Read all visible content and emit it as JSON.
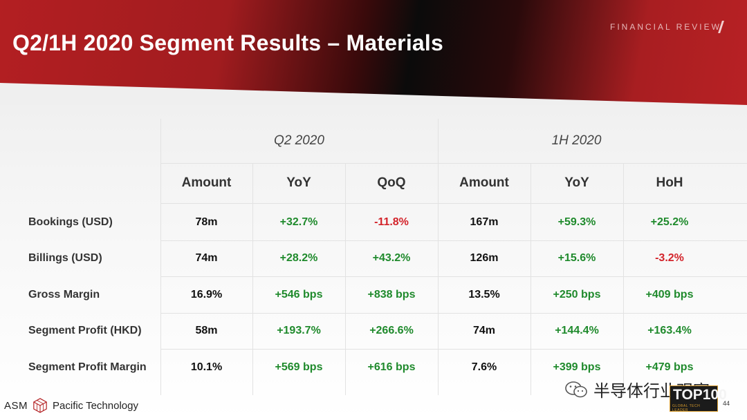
{
  "header": {
    "title": "Q2/1H 2020 Segment Results – Materials",
    "section_label": "FINANCIAL REVIEW"
  },
  "table": {
    "group_headers": [
      "Q2 2020",
      "1H 2020"
    ],
    "column_headers": [
      "Amount",
      "YoY",
      "QoQ",
      "Amount",
      "YoY",
      "HoH"
    ],
    "rows": [
      {
        "label": "Bookings (USD)",
        "values": [
          "78m",
          "+32.7%",
          "-11.8%",
          "167m",
          "+59.3%",
          "+25.2%"
        ]
      },
      {
        "label": "Billings (USD)",
        "values": [
          "74m",
          "+28.2%",
          "+43.2%",
          "126m",
          "+15.6%",
          "-3.2%"
        ]
      },
      {
        "label": "Gross Margin",
        "values": [
          "16.9%",
          "+546 bps",
          "+838 bps",
          "13.5%",
          "+250 bps",
          "+409 bps"
        ]
      },
      {
        "label": "Segment Profit (HKD)",
        "values": [
          "58m",
          "+193.7%",
          "+266.6%",
          "74m",
          "+144.4%",
          "+163.4%"
        ]
      },
      {
        "label": "Segment Profit Margin",
        "values": [
          "10.1%",
          "+569 bps",
          "+616 bps",
          "7.6%",
          "+399 bps",
          "+479 bps"
        ]
      }
    ]
  },
  "footer": {
    "company_left": "ASM",
    "company_right": "Pacific Technology",
    "wechat_account": "半导体行业观察",
    "badge_main": "TOP100",
    "badge_sub": "GLOBAL TECH LEADER",
    "page_number": "44"
  },
  "colors": {
    "brand_red": "#b31f22",
    "positive": "#1f8a2c",
    "negative": "#d3232a"
  },
  "icons": [
    "asm-cube-logo-icon",
    "wechat-icon"
  ]
}
